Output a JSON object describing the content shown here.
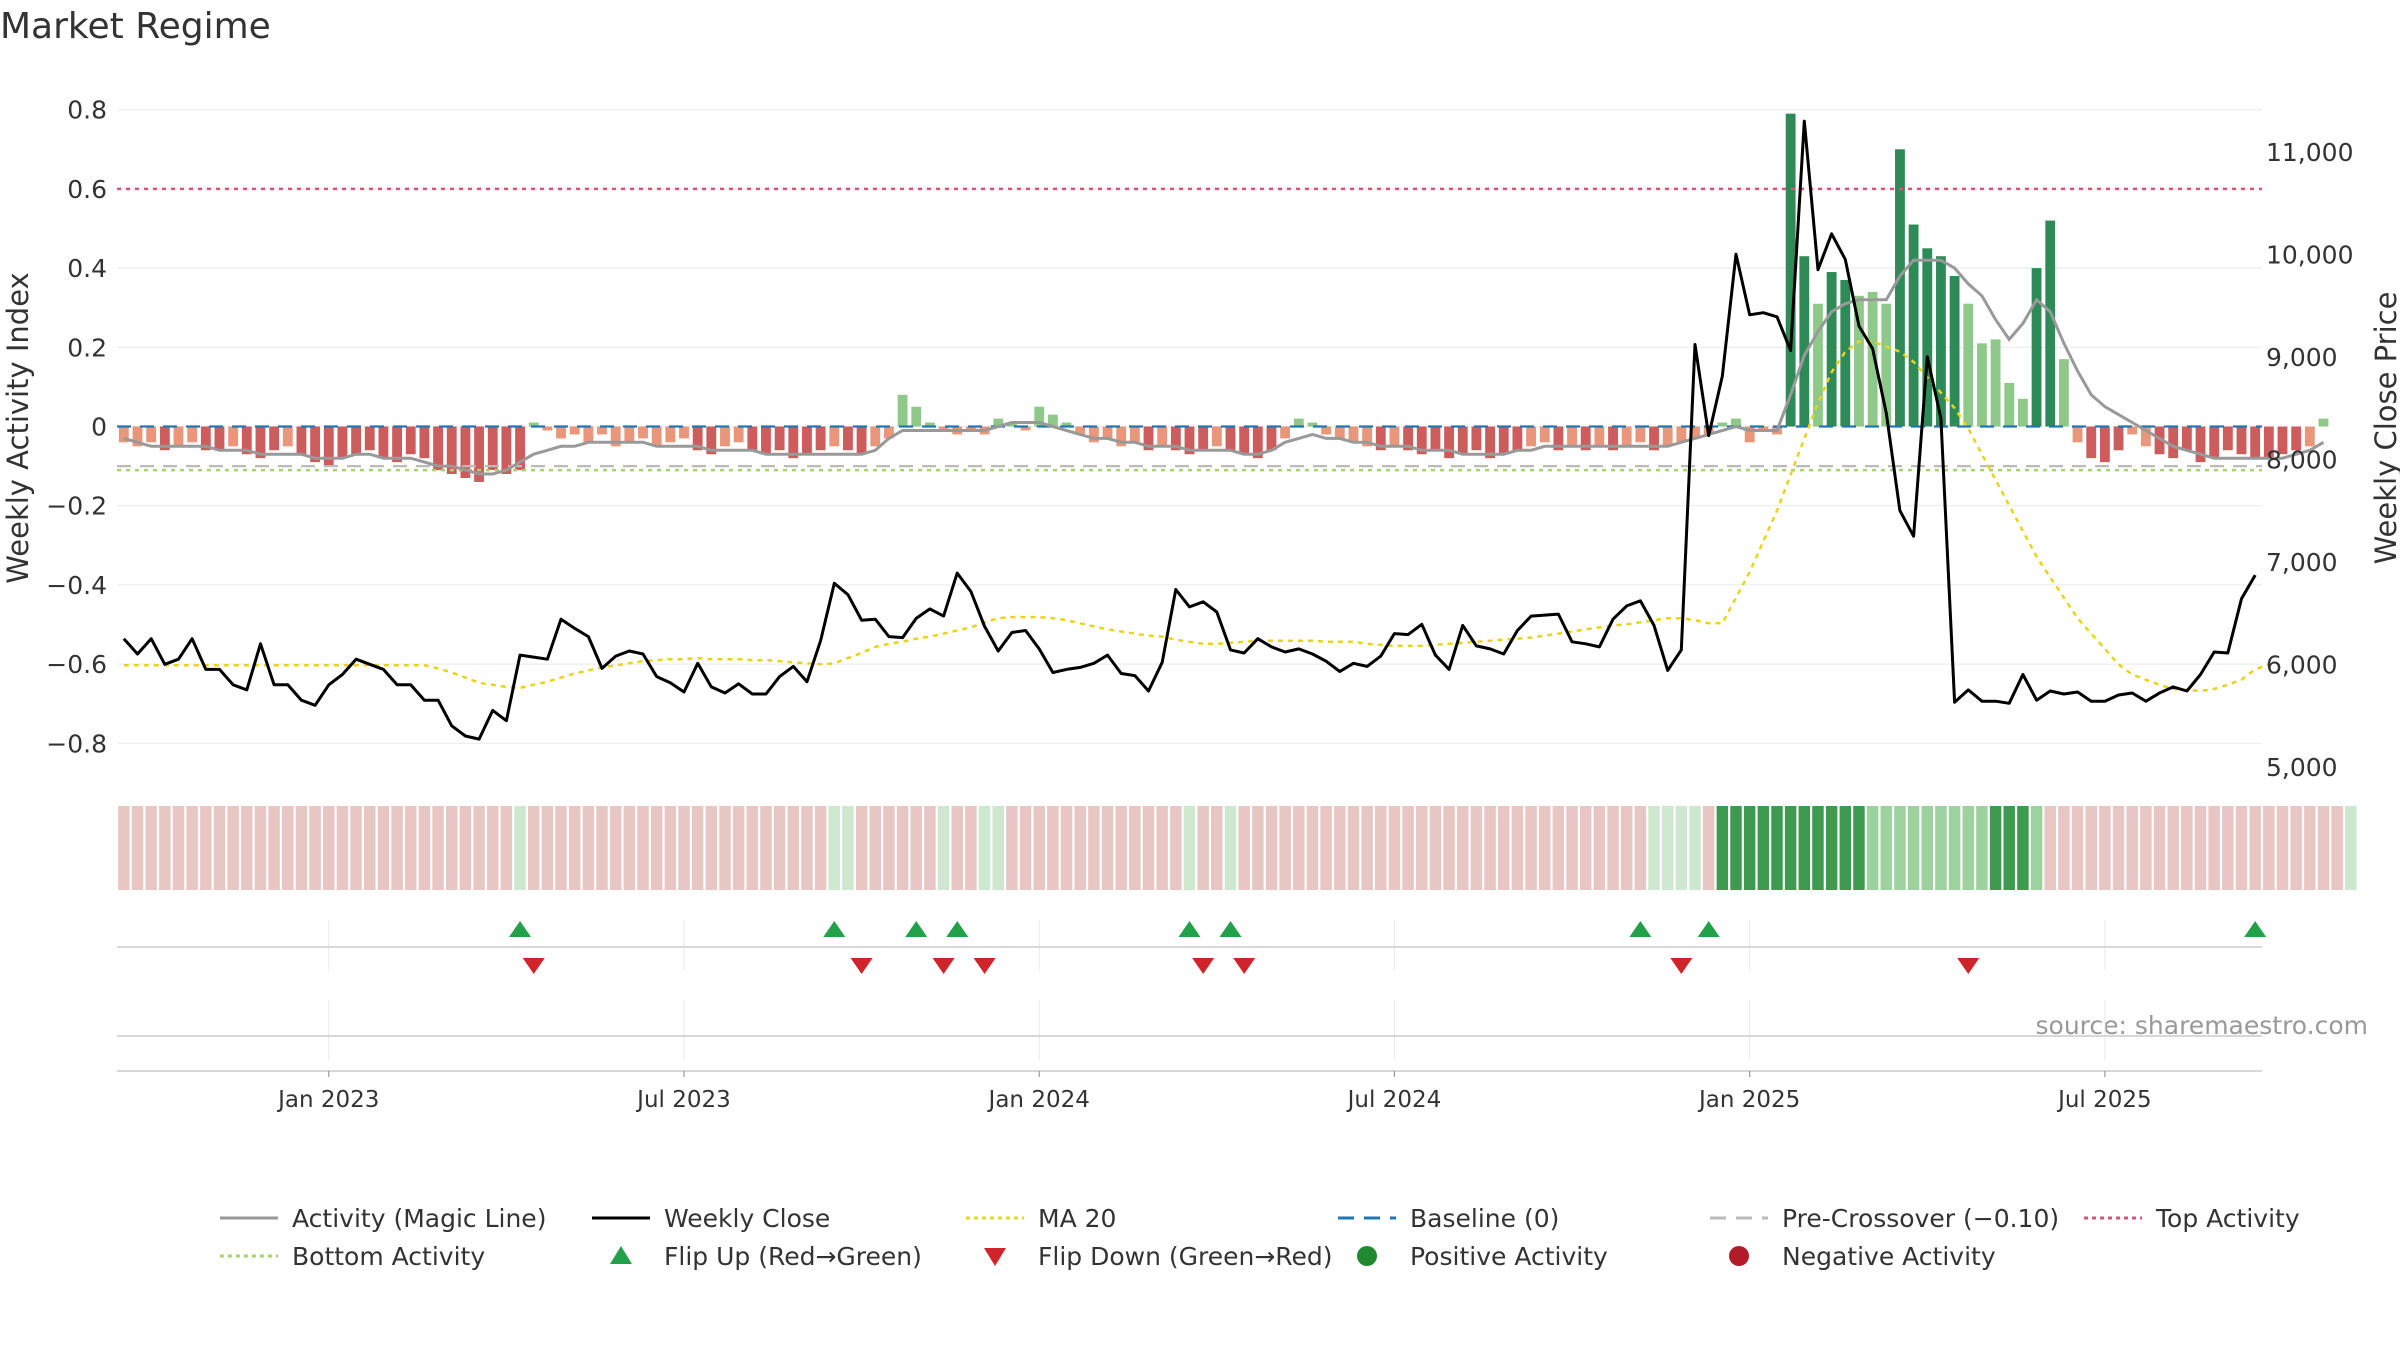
{
  "chart_data": {
    "type": "bar",
    "title": "Market Regime",
    "ylabel_left": "Weekly Activity Index",
    "ylabel_right": "Weekly Close Price",
    "ylim_left": [
      -0.88,
      0.88
    ],
    "ylim_right": [
      4920,
      11720
    ],
    "yticks_left": [
      {
        "v": 0.8,
        "t": "0.8"
      },
      {
        "v": 0.6,
        "t": "0.6"
      },
      {
        "v": 0.4,
        "t": "0.4"
      },
      {
        "v": 0.2,
        "t": "0.2"
      },
      {
        "v": 0.0,
        "t": "0"
      },
      {
        "v": -0.2,
        "t": "−0.2"
      },
      {
        "v": -0.4,
        "t": "−0.4"
      },
      {
        "v": -0.6,
        "t": "−0.6"
      },
      {
        "v": -0.8,
        "t": "−0.8"
      }
    ],
    "yticks_right": [
      {
        "v": 11000,
        "t": "11,000"
      },
      {
        "v": 10000,
        "t": "10,000"
      },
      {
        "v": 9000,
        "t": "9,000"
      },
      {
        "v": 8000,
        "t": "8,000"
      },
      {
        "v": 7000,
        "t": "7,000"
      },
      {
        "v": 6000,
        "t": "6,000"
      },
      {
        "v": 5000,
        "t": "5,000"
      }
    ],
    "xticks": [
      {
        "i": 15,
        "t": "Jan 2023"
      },
      {
        "i": 41,
        "t": "Jul 2023"
      },
      {
        "i": 67,
        "t": "Jan 2024"
      },
      {
        "i": 93,
        "t": "Jul 2024"
      },
      {
        "i": 119,
        "t": "Jan 2025"
      },
      {
        "i": 145,
        "t": "Jul 2025"
      }
    ],
    "week_count": 157,
    "activity": [
      -0.04,
      -0.05,
      -0.04,
      -0.06,
      -0.05,
      -0.04,
      -0.06,
      -0.06,
      -0.05,
      -0.07,
      -0.08,
      -0.06,
      -0.05,
      -0.07,
      -0.09,
      -0.1,
      -0.08,
      -0.07,
      -0.06,
      -0.08,
      -0.09,
      -0.07,
      -0.08,
      -0.11,
      -0.12,
      -0.13,
      -0.14,
      -0.11,
      -0.12,
      -0.11,
      0.01,
      -0.01,
      -0.03,
      -0.02,
      -0.04,
      -0.02,
      -0.05,
      -0.04,
      -0.03,
      -0.05,
      -0.04,
      -0.03,
      -0.06,
      -0.07,
      -0.05,
      -0.04,
      -0.06,
      -0.07,
      -0.06,
      -0.08,
      -0.07,
      -0.06,
      -0.05,
      -0.06,
      -0.07,
      -0.05,
      -0.03,
      0.08,
      0.05,
      0.01,
      -0.01,
      -0.02,
      -0.01,
      -0.02,
      0.02,
      0.01,
      -0.01,
      0.05,
      0.03,
      0.01,
      -0.02,
      -0.04,
      -0.03,
      -0.05,
      -0.04,
      -0.06,
      -0.05,
      -0.06,
      -0.07,
      -0.06,
      -0.05,
      -0.06,
      -0.07,
      -0.08,
      -0.06,
      -0.03,
      0.02,
      0.01,
      -0.02,
      -0.03,
      -0.04,
      -0.05,
      -0.06,
      -0.05,
      -0.06,
      -0.07,
      -0.06,
      -0.08,
      -0.07,
      -0.06,
      -0.08,
      -0.07,
      -0.06,
      -0.05,
      -0.04,
      -0.06,
      -0.05,
      -0.06,
      -0.05,
      -0.06,
      -0.05,
      -0.04,
      -0.06,
      -0.05,
      -0.04,
      -0.03,
      -0.02,
      0.01,
      0.02,
      -0.04,
      -0.01,
      -0.02,
      0.79,
      0.43,
      0.31,
      0.39,
      0.37,
      0.33,
      0.34,
      0.31,
      0.7,
      0.51,
      0.45,
      0.43,
      0.38,
      0.31,
      0.21,
      0.22,
      0.11,
      0.07,
      0.4,
      0.52,
      0.17,
      -0.04,
      -0.08,
      -0.09,
      -0.06,
      -0.02,
      -0.05,
      -0.07,
      -0.08,
      -0.06,
      -0.09,
      -0.08,
      -0.06,
      -0.07,
      -0.08,
      -0.08,
      -0.07,
      -0.06,
      -0.05,
      0.02
    ],
    "magic_line": [
      -0.03,
      -0.04,
      -0.05,
      -0.05,
      -0.05,
      -0.05,
      -0.05,
      -0.06,
      -0.06,
      -0.06,
      -0.07,
      -0.07,
      -0.07,
      -0.07,
      -0.08,
      -0.08,
      -0.08,
      -0.07,
      -0.07,
      -0.08,
      -0.08,
      -0.08,
      -0.09,
      -0.1,
      -0.1,
      -0.11,
      -0.12,
      -0.12,
      -0.11,
      -0.09,
      -0.07,
      -0.06,
      -0.05,
      -0.05,
      -0.04,
      -0.04,
      -0.04,
      -0.04,
      -0.04,
      -0.05,
      -0.05,
      -0.05,
      -0.05,
      -0.06,
      -0.06,
      -0.06,
      -0.06,
      -0.07,
      -0.07,
      -0.07,
      -0.07,
      -0.07,
      -0.07,
      -0.07,
      -0.07,
      -0.06,
      -0.03,
      -0.01,
      -0.01,
      -0.01,
      -0.01,
      -0.01,
      -0.01,
      -0.01,
      0.0,
      0.01,
      0.01,
      0.01,
      0.0,
      -0.01,
      -0.02,
      -0.03,
      -0.03,
      -0.04,
      -0.04,
      -0.05,
      -0.05,
      -0.05,
      -0.06,
      -0.06,
      -0.06,
      -0.06,
      -0.07,
      -0.07,
      -0.06,
      -0.04,
      -0.03,
      -0.02,
      -0.03,
      -0.03,
      -0.04,
      -0.04,
      -0.05,
      -0.05,
      -0.05,
      -0.06,
      -0.06,
      -0.06,
      -0.07,
      -0.07,
      -0.07,
      -0.07,
      -0.06,
      -0.06,
      -0.05,
      -0.05,
      -0.05,
      -0.05,
      -0.05,
      -0.05,
      -0.05,
      -0.05,
      -0.05,
      -0.05,
      -0.04,
      -0.03,
      -0.02,
      -0.01,
      0.0,
      -0.01,
      -0.01,
      -0.01,
      0.08,
      0.18,
      0.24,
      0.29,
      0.31,
      0.32,
      0.32,
      0.32,
      0.38,
      0.42,
      0.42,
      0.42,
      0.4,
      0.36,
      0.33,
      0.27,
      0.22,
      0.26,
      0.32,
      0.29,
      0.21,
      0.14,
      0.08,
      0.05,
      0.03,
      0.01,
      -0.01,
      -0.03,
      -0.05,
      -0.06,
      -0.07,
      -0.08,
      -0.08,
      -0.08,
      -0.08,
      -0.08,
      -0.08,
      -0.07,
      -0.06,
      -0.04
    ],
    "close": [
      6250,
      6100,
      6250,
      6000,
      6050,
      6250,
      5950,
      5950,
      5800,
      5750,
      6200,
      5800,
      5800,
      5650,
      5600,
      5800,
      5900,
      6050,
      6000,
      5950,
      5800,
      5800,
      5650,
      5650,
      5400,
      5300,
      5270,
      5550,
      5450,
      6090,
      6070,
      6050,
      6440,
      6350,
      6270,
      5960,
      6080,
      6130,
      6100,
      5880,
      5820,
      5730,
      6010,
      5780,
      5720,
      5810,
      5710,
      5710,
      5880,
      5980,
      5830,
      6230,
      6790,
      6680,
      6430,
      6440,
      6270,
      6260,
      6450,
      6540,
      6470,
      6890,
      6710,
      6370,
      6130,
      6310,
      6330,
      6150,
      5920,
      5950,
      5970,
      6010,
      6090,
      5910,
      5890,
      5740,
      6020,
      6730,
      6560,
      6610,
      6510,
      6140,
      6110,
      6250,
      6170,
      6120,
      6150,
      6100,
      6030,
      5930,
      6010,
      5980,
      6080,
      6300,
      6290,
      6390,
      6090,
      5950,
      6380,
      6180,
      6150,
      6100,
      6330,
      6470,
      6480,
      6490,
      6220,
      6200,
      6170,
      6440,
      6570,
      6620,
      6380,
      5940,
      6140,
      9120,
      8230,
      8810,
      10000,
      9410,
      9430,
      9390,
      9060,
      11300,
      9850,
      10200,
      9950,
      9300,
      9080,
      8450,
      7500,
      7250,
      9000,
      8400,
      5630,
      5750,
      5640,
      5640,
      5620,
      5900,
      5650,
      5740,
      5710,
      5730,
      5640,
      5640,
      5700,
      5720,
      5640,
      5720,
      5780,
      5740,
      5900,
      6120,
      6110,
      6640,
      6870
    ],
    "ma20": [
      5990,
      5990,
      5990,
      5990,
      5990,
      5990,
      5990,
      5990,
      5990,
      5990,
      5990,
      5990,
      5990,
      5990,
      5990,
      5990,
      5990,
      5990,
      5990,
      5990,
      5990,
      5990,
      5990,
      5960,
      5920,
      5870,
      5820,
      5800,
      5780,
      5770,
      5800,
      5830,
      5870,
      5910,
      5940,
      5970,
      5990,
      6010,
      6030,
      6040,
      6050,
      6050,
      6060,
      6050,
      6050,
      6050,
      6040,
      6040,
      6030,
      6020,
      6010,
      6000,
      6010,
      6060,
      6110,
      6170,
      6200,
      6220,
      6250,
      6270,
      6300,
      6330,
      6360,
      6410,
      6450,
      6460,
      6460,
      6460,
      6450,
      6430,
      6400,
      6370,
      6340,
      6320,
      6300,
      6280,
      6270,
      6240,
      6220,
      6200,
      6200,
      6210,
      6220,
      6230,
      6230,
      6230,
      6230,
      6230,
      6220,
      6220,
      6220,
      6200,
      6190,
      6180,
      6180,
      6180,
      6190,
      6200,
      6210,
      6220,
      6230,
      6240,
      6250,
      6260,
      6280,
      6300,
      6320,
      6340,
      6360,
      6380,
      6390,
      6410,
      6430,
      6450,
      6450,
      6430,
      6400,
      6400,
      6650,
      6900,
      7200,
      7500,
      7850,
      8200,
      8550,
      8850,
      9050,
      9150,
      9150,
      9100,
      9050,
      8950,
      8800,
      8650,
      8500,
      8300,
      8050,
      7800,
      7550,
      7300,
      7050,
      6850,
      6650,
      6450,
      6300,
      6150,
      6000,
      5900,
      5850,
      5800,
      5760,
      5750,
      5740,
      5760,
      5800,
      5850,
      5950,
      6000
    ],
    "regime_band": [
      "R",
      "R",
      "R",
      "R",
      "R",
      "R",
      "R",
      "R",
      "R",
      "R",
      "R",
      "R",
      "R",
      "R",
      "R",
      "R",
      "R",
      "R",
      "R",
      "R",
      "R",
      "R",
      "R",
      "R",
      "R",
      "R",
      "R",
      "R",
      "R",
      "G",
      "R",
      "R",
      "R",
      "R",
      "R",
      "R",
      "R",
      "R",
      "R",
      "R",
      "R",
      "R",
      "R",
      "R",
      "R",
      "R",
      "R",
      "R",
      "R",
      "R",
      "R",
      "R",
      "G",
      "G",
      "R",
      "R",
      "R",
      "R",
      "R",
      "R",
      "G",
      "R",
      "R",
      "G",
      "G",
      "R",
      "R",
      "R",
      "R",
      "R",
      "R",
      "R",
      "R",
      "R",
      "R",
      "R",
      "R",
      "R",
      "G",
      "R",
      "R",
      "G",
      "R",
      "R",
      "R",
      "R",
      "R",
      "R",
      "R",
      "R",
      "R",
      "R",
      "R",
      "R",
      "R",
      "R",
      "R",
      "R",
      "R",
      "R",
      "R",
      "R",
      "R",
      "R",
      "R",
      "R",
      "R",
      "R",
      "R",
      "R",
      "R",
      "R",
      "G",
      "G",
      "G",
      "G",
      "R",
      "D",
      "D",
      "D",
      "D",
      "D",
      "D",
      "D",
      "D",
      "D",
      "D",
      "D",
      "M",
      "M",
      "M",
      "M",
      "M",
      "M",
      "M",
      "M",
      "M",
      "D",
      "D",
      "D",
      "M",
      "R",
      "R",
      "R",
      "R",
      "R",
      "R",
      "R",
      "R",
      "R",
      "R",
      "R",
      "R",
      "R",
      "R",
      "R",
      "R",
      "R",
      "R",
      "R",
      "R",
      "R",
      "R",
      "G"
    ],
    "flip_up_weeks": [
      29,
      52,
      58,
      61,
      78,
      81,
      111,
      116,
      156
    ],
    "flip_down_weeks": [
      30,
      54,
      60,
      63,
      79,
      82,
      114,
      135
    ],
    "reference_lines": {
      "baseline": 0,
      "pre_crossover": -0.1,
      "top_activity": 0.6,
      "bottom_activity": -0.11
    },
    "colors": {
      "positive_strong": "#2e8b57",
      "positive_light": "#8fc98a",
      "negative_strong": "#cd5c5c",
      "negative_light": "#e9967a",
      "magic_line": "#999999",
      "close": "#000000",
      "ma20": "#e8d41c",
      "baseline": "#1f77b4",
      "pre_crossover": "#bbbbbb",
      "top_activity": "#d9537a",
      "bottom_activity": "#a4d46c",
      "flip_up": "#22a04a",
      "flip_down": "#d0242b",
      "positive_marker": "#1f8a2f",
      "negative_marker": "#b31b2a",
      "band_red": "#e8c6c3",
      "band_green": "#cde8cf",
      "band_green_mid": "#9dd29e",
      "band_green_dark": "#3d9a4f"
    },
    "source": "source: sharemaestro.com",
    "legend_placement": "bottom",
    "legend": [
      {
        "label": "Activity (Magic Line)",
        "kind": "solid",
        "color": "#999999"
      },
      {
        "label": "Weekly Close",
        "kind": "solid",
        "color": "#000000"
      },
      {
        "label": "MA 20",
        "kind": "dotted",
        "color": "#e8d41c"
      },
      {
        "label": "Baseline (0)",
        "kind": "dashed",
        "color": "#1f77b4"
      },
      {
        "label": "Pre-Crossover (−0.10)",
        "kind": "dashed",
        "color": "#bbbbbb"
      },
      {
        "label": "Top Activity",
        "kind": "dotted",
        "color": "#d9537a"
      },
      {
        "label": "Bottom Activity",
        "kind": "dotted",
        "color": "#a4d46c"
      },
      {
        "label": "Flip Up (Red→Green)",
        "kind": "tri-up",
        "color": "#22a04a"
      },
      {
        "label": "Flip Down (Green→Red)",
        "kind": "tri-down",
        "color": "#d0242b"
      },
      {
        "label": "Positive Activity",
        "kind": "dot",
        "color": "#1f8a2f"
      },
      {
        "label": "Negative Activity",
        "kind": "dot",
        "color": "#b31b2a"
      }
    ]
  }
}
